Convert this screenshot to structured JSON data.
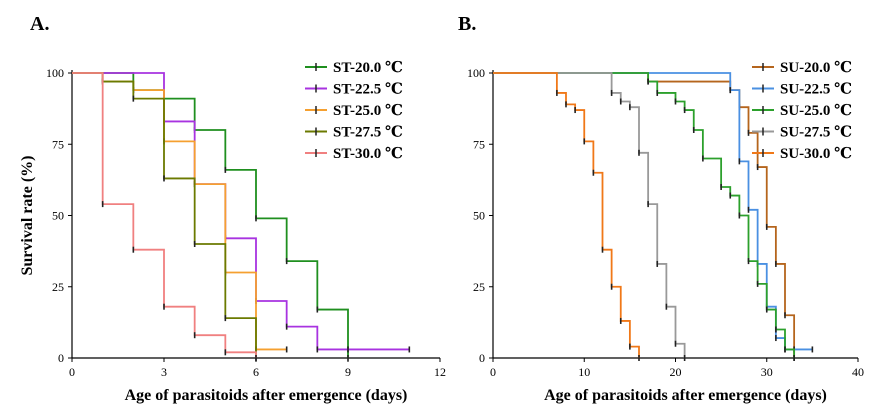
{
  "chart_data": [
    {
      "type": "line",
      "step": true,
      "panel_label": "A.",
      "xlabel": "Age of parasitoids after emergence (days)",
      "ylabel": "Survival rate (%)",
      "xlim": [
        0,
        12
      ],
      "ylim": [
        0,
        100
      ],
      "xticks": [
        0,
        3,
        6,
        9,
        12
      ],
      "yticks": [
        0,
        25,
        50,
        75,
        100
      ],
      "legend_position": "top-right",
      "series": [
        {
          "name": "ST-20.0 ℃",
          "color": "#1f8f1f",
          "x": [
            0,
            2,
            3,
            4,
            5,
            6,
            7,
            8,
            9
          ],
          "y": [
            100,
            94,
            91,
            80,
            66,
            49,
            34,
            17,
            0
          ]
        },
        {
          "name": "ST-22.5 ℃",
          "color": "#a833e0",
          "x": [
            0,
            3,
            4,
            5,
            6,
            7,
            8,
            9,
            11
          ],
          "y": [
            100,
            83,
            61,
            42,
            20,
            11,
            3,
            3,
            3
          ]
        },
        {
          "name": "ST-25.0 ℃",
          "color": "#f5a030",
          "x": [
            0,
            1,
            2,
            3,
            4,
            5,
            6,
            7
          ],
          "y": [
            100,
            97,
            94,
            76,
            61,
            30,
            3,
            3
          ]
        },
        {
          "name": "ST-27.5 ℃",
          "color": "#6b7a00",
          "x": [
            0,
            1,
            2,
            3,
            4,
            5,
            6
          ],
          "y": [
            100,
            97,
            91,
            63,
            40,
            14,
            0
          ]
        },
        {
          "name": "ST-30.0 ℃",
          "color": "#f08080",
          "x": [
            0,
            1,
            2,
            3,
            4,
            5,
            6
          ],
          "y": [
            100,
            54,
            38,
            18,
            8,
            2,
            0
          ]
        }
      ]
    },
    {
      "type": "line",
      "step": true,
      "panel_label": "B.",
      "xlabel": "Age of parasitoids after emergence (days)",
      "ylabel": "",
      "xlim": [
        0,
        40
      ],
      "ylim": [
        0,
        100
      ],
      "xticks": [
        0,
        10,
        20,
        30,
        40
      ],
      "yticks": [
        0,
        25,
        50,
        75,
        100
      ],
      "legend_position": "top-right",
      "series": [
        {
          "name": "SU-20.0 ℃",
          "color": "#b5651d",
          "x": [
            0,
            17,
            26,
            27,
            28,
            29,
            30,
            31,
            32,
            33
          ],
          "y": [
            100,
            97,
            94,
            88,
            79,
            67,
            46,
            33,
            15,
            0
          ]
        },
        {
          "name": "SU-22.5 ℃",
          "color": "#4a90e2",
          "x": [
            0,
            26,
            27,
            28,
            29,
            30,
            31,
            32,
            33,
            35
          ],
          "y": [
            100,
            94,
            69,
            52,
            33,
            18,
            7,
            3,
            3,
            3
          ]
        },
        {
          "name": "SU-25.0 ℃",
          "color": "#2ca02c",
          "x": [
            0,
            17,
            18,
            20,
            21,
            22,
            23,
            25,
            26,
            27,
            28,
            29,
            30,
            31,
            32,
            33
          ],
          "y": [
            100,
            97,
            93,
            90,
            87,
            80,
            70,
            60,
            57,
            50,
            34,
            26,
            17,
            10,
            3,
            0
          ]
        },
        {
          "name": "SU-27.5 ℃",
          "color": "#999999",
          "x": [
            0,
            13,
            14,
            15,
            16,
            17,
            18,
            19,
            20,
            21
          ],
          "y": [
            100,
            93,
            90,
            88,
            72,
            54,
            33,
            18,
            5,
            0
          ]
        },
        {
          "name": "SU-30.0 ℃",
          "color": "#f07818",
          "x": [
            0,
            7,
            8,
            9,
            10,
            11,
            12,
            13,
            14,
            15,
            16
          ],
          "y": [
            100,
            93,
            89,
            87,
            76,
            65,
            38,
            25,
            13,
            4,
            0
          ]
        }
      ]
    }
  ]
}
